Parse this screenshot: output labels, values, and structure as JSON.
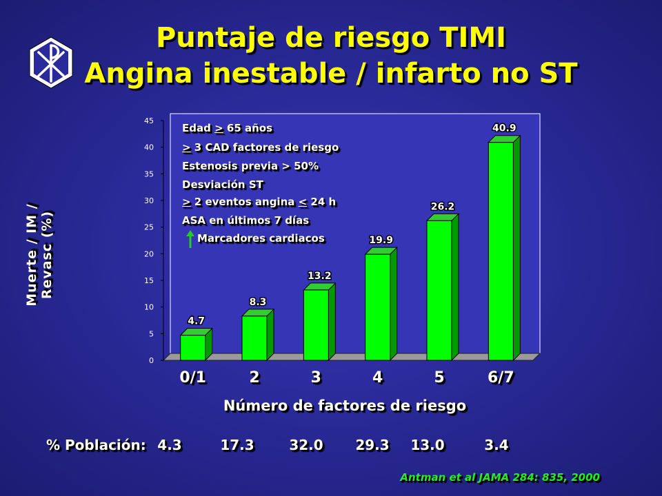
{
  "title_line1": "Puntaje de riesgo TIMI",
  "title_line2": "Angina inestable / infarto no ST",
  "logo_icon": "chi-rho-hexagon-icon",
  "legend": {
    "line1_a": "Edad ",
    "line1_b": ">",
    "line1_c": " 65 años",
    "line2_a": ">",
    "line2_b": " 3 CAD factores de riesgo",
    "line3": "Estenosis  previa > 50%",
    "line4": "Desviación ST",
    "line5_a": ">",
    "line5_b": " 2 eventos angina ",
    "line5_c": "<",
    "line5_d": " 24 h",
    "line6": "ASA en últimos 7 días",
    "line7": "Marcadores cardiacos",
    "arrow_icon": "up-arrow-icon",
    "arrow_color": "#22cc22"
  },
  "population": {
    "label": "% Población:",
    "values": [
      "4.3",
      "17.3",
      "32.0",
      "29.3",
      "13.0",
      "3.4"
    ]
  },
  "citation": "Antman et al JAMA 284: 835, 2000",
  "colors": {
    "title": "#ffff00",
    "bar": "#00ff00",
    "bar_side": "#009900",
    "bar_top": "#33cc33",
    "citation": "#22ee22",
    "plot_bg": "#3535b5"
  },
  "chart_data": {
    "type": "bar",
    "title": "",
    "xlabel": "Número de factores de riesgo",
    "ylabel": "Muerte / IM / Revasc (%)",
    "categories": [
      "0/1",
      "2",
      "3",
      "4",
      "5",
      "6/7"
    ],
    "values": [
      4.7,
      8.3,
      13.2,
      19.9,
      26.2,
      40.9
    ],
    "value_labels": [
      "4.7",
      "8.3",
      "13.2",
      "19.9",
      "26.2",
      "40.9"
    ],
    "ylim": [
      0,
      45
    ],
    "yticks": [
      "0",
      "5",
      "10",
      "15",
      "20",
      "25",
      "30",
      "35",
      "40",
      "45"
    ],
    "grid": false,
    "legend": "none"
  }
}
